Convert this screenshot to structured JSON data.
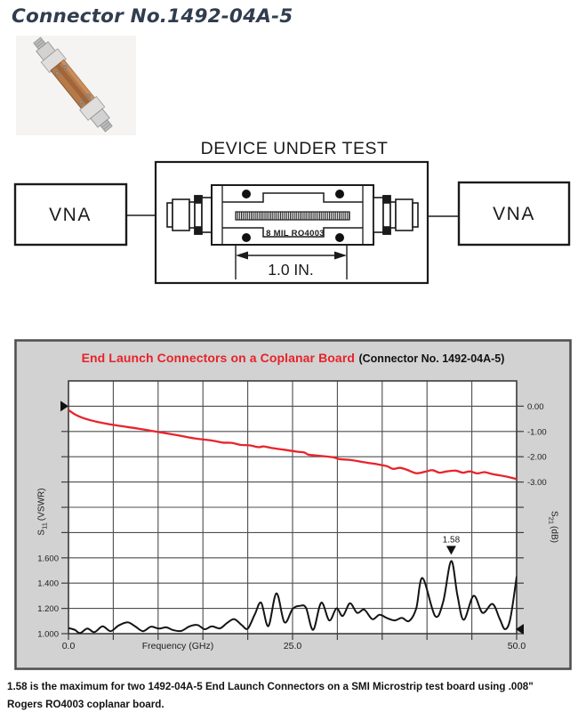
{
  "page": {
    "title": "Connector No.1492-04A-5"
  },
  "diagram": {
    "heading": "DEVICE UNDER TEST",
    "vna_left": "VNA",
    "vna_right": "VNA",
    "board_label": "8 MIL RO4003",
    "dimension_label": "1.0 IN."
  },
  "chart": {
    "title_red": "End Launch Connectors on a Coplanar Board",
    "title_black": "(Connector No. 1492-04A-5)",
    "left_axis": {
      "symbol": "S",
      "subscript": "11",
      "unit": "(VSWR)"
    },
    "right_axis": {
      "symbol": "S",
      "subscript": "21",
      "unit": "(dB)"
    },
    "colors": {
      "title_red": "#e8222a",
      "s21_curve": "#e8242b",
      "s11_curve": "#141414"
    }
  },
  "chart_data": {
    "type": "line",
    "title": "End Launch Connectors on a Coplanar Board (Connector No. 1492-04A-5)",
    "xlabel": "Frequency (GHz)",
    "xlabel_position": 12.2,
    "xlim": [
      0,
      50
    ],
    "grid_x_step": 5,
    "grid": true,
    "x_ticks": [
      {
        "label": "0.0",
        "value": 0
      },
      {
        "label": "25.0",
        "value": 25
      },
      {
        "label": "50.0",
        "value": 50
      }
    ],
    "left_axis_label": "S11 (VSWR)",
    "right_axis_label": "S21 (dB)",
    "left_ylim": [
      1.0,
      3.0
    ],
    "right_ylim": [
      -9.0,
      1.0
    ],
    "left_scale": {
      "units_per_div": 0.2,
      "bottom_value": 1.0
    },
    "right_scale": {
      "units_per_div": -1.0,
      "zero_row": 1
    },
    "left_ticks": [
      {
        "label": "1.600",
        "value": 1.6
      },
      {
        "label": "1.400",
        "value": 1.4
      },
      {
        "label": "1.200",
        "value": 1.2
      },
      {
        "label": "1.000",
        "value": 1.0
      }
    ],
    "right_ticks": [
      {
        "label": "0.00",
        "value": 0
      },
      {
        "label": "-1.00",
        "value": -1
      },
      {
        "label": "-2.00",
        "value": -2
      },
      {
        "label": "-3.00",
        "value": -3
      }
    ],
    "annotation": {
      "text": "1.58",
      "x": 42.7,
      "y": 1.575
    },
    "series": [
      {
        "name": "S21 (dB)",
        "axis": "right",
        "color": "#e8242b",
        "points": [
          [
            0,
            -0.15
          ],
          [
            0.7,
            -0.32
          ],
          [
            1.5,
            -0.45
          ],
          [
            2.5,
            -0.56
          ],
          [
            3.5,
            -0.64
          ],
          [
            5,
            -0.74
          ],
          [
            6.5,
            -0.82
          ],
          [
            8,
            -0.9
          ],
          [
            10,
            -1.02
          ],
          [
            12,
            -1.14
          ],
          [
            14,
            -1.27
          ],
          [
            16,
            -1.36
          ],
          [
            17.2,
            -1.44
          ],
          [
            18.2,
            -1.45
          ],
          [
            19.2,
            -1.53
          ],
          [
            20.2,
            -1.55
          ],
          [
            21.2,
            -1.62
          ],
          [
            21.8,
            -1.59
          ],
          [
            22.6,
            -1.65
          ],
          [
            24,
            -1.72
          ],
          [
            25.5,
            -1.8
          ],
          [
            26.3,
            -1.83
          ],
          [
            26.8,
            -1.92
          ],
          [
            28,
            -1.96
          ],
          [
            29.5,
            -2.02
          ],
          [
            30.2,
            -2.09
          ],
          [
            31.5,
            -2.13
          ],
          [
            33,
            -2.22
          ],
          [
            34.5,
            -2.3
          ],
          [
            35.5,
            -2.37
          ],
          [
            36.2,
            -2.48
          ],
          [
            37,
            -2.44
          ],
          [
            37.8,
            -2.52
          ],
          [
            38.8,
            -2.65
          ],
          [
            39.8,
            -2.59
          ],
          [
            40.6,
            -2.53
          ],
          [
            41.4,
            -2.63
          ],
          [
            42.2,
            -2.58
          ],
          [
            43.2,
            -2.55
          ],
          [
            44,
            -2.63
          ],
          [
            44.8,
            -2.58
          ],
          [
            45.6,
            -2.66
          ],
          [
            46.4,
            -2.61
          ],
          [
            47.2,
            -2.68
          ],
          [
            48,
            -2.73
          ],
          [
            48.8,
            -2.78
          ],
          [
            49.4,
            -2.83
          ],
          [
            50,
            -2.88
          ]
        ]
      },
      {
        "name": "S11 (VSWR)",
        "axis": "left",
        "color": "#141414",
        "points": [
          [
            0,
            1.045
          ],
          [
            0.7,
            1.03
          ],
          [
            1.3,
            1.005
          ],
          [
            2.1,
            1.04
          ],
          [
            2.9,
            1.012
          ],
          [
            3.8,
            1.058
          ],
          [
            4.7,
            1.02
          ],
          [
            5.6,
            1.065
          ],
          [
            6.6,
            1.09
          ],
          [
            7.4,
            1.06
          ],
          [
            8.3,
            1.02
          ],
          [
            9.2,
            1.055
          ],
          [
            10.1,
            1.04
          ],
          [
            10.9,
            1.05
          ],
          [
            11.7,
            1.028
          ],
          [
            12.6,
            1.022
          ],
          [
            13.5,
            1.058
          ],
          [
            14.4,
            1.068
          ],
          [
            15.2,
            1.035
          ],
          [
            16,
            1.058
          ],
          [
            16.9,
            1.042
          ],
          [
            17.7,
            1.085
          ],
          [
            18.5,
            1.115
          ],
          [
            19.3,
            1.07
          ],
          [
            20,
            1.04
          ],
          [
            20.8,
            1.155
          ],
          [
            21.5,
            1.245
          ],
          [
            22.3,
            1.06
          ],
          [
            23.2,
            1.32
          ],
          [
            24.1,
            1.09
          ],
          [
            25,
            1.195
          ],
          [
            25.8,
            1.22
          ],
          [
            26.5,
            1.205
          ],
          [
            27.3,
            1.03
          ],
          [
            28.2,
            1.245
          ],
          [
            29.1,
            1.105
          ],
          [
            29.9,
            1.2
          ],
          [
            30.6,
            1.14
          ],
          [
            31.4,
            1.24
          ],
          [
            32.2,
            1.165
          ],
          [
            33,
            1.19
          ],
          [
            33.9,
            1.115
          ],
          [
            34.7,
            1.15
          ],
          [
            35.5,
            1.125
          ],
          [
            36.4,
            1.105
          ],
          [
            37.2,
            1.125
          ],
          [
            38,
            1.1
          ],
          [
            38.8,
            1.2
          ],
          [
            39.5,
            1.44
          ],
          [
            40.9,
            1.14
          ],
          [
            41.8,
            1.25
          ],
          [
            42.7,
            1.575
          ],
          [
            43.4,
            1.3
          ],
          [
            44.1,
            1.11
          ],
          [
            45.2,
            1.3
          ],
          [
            46.2,
            1.165
          ],
          [
            47.3,
            1.235
          ],
          [
            48.1,
            1.12
          ],
          [
            48.7,
            1.035
          ],
          [
            49.3,
            1.12
          ],
          [
            50,
            1.45
          ]
        ]
      }
    ]
  },
  "caption": {
    "line1": "1.58 is the maximum for two 1492-04A-5 End Launch Connectors on a SMI Microstrip test board using .008\"",
    "line2": "Rogers RO4003 coplanar board."
  }
}
